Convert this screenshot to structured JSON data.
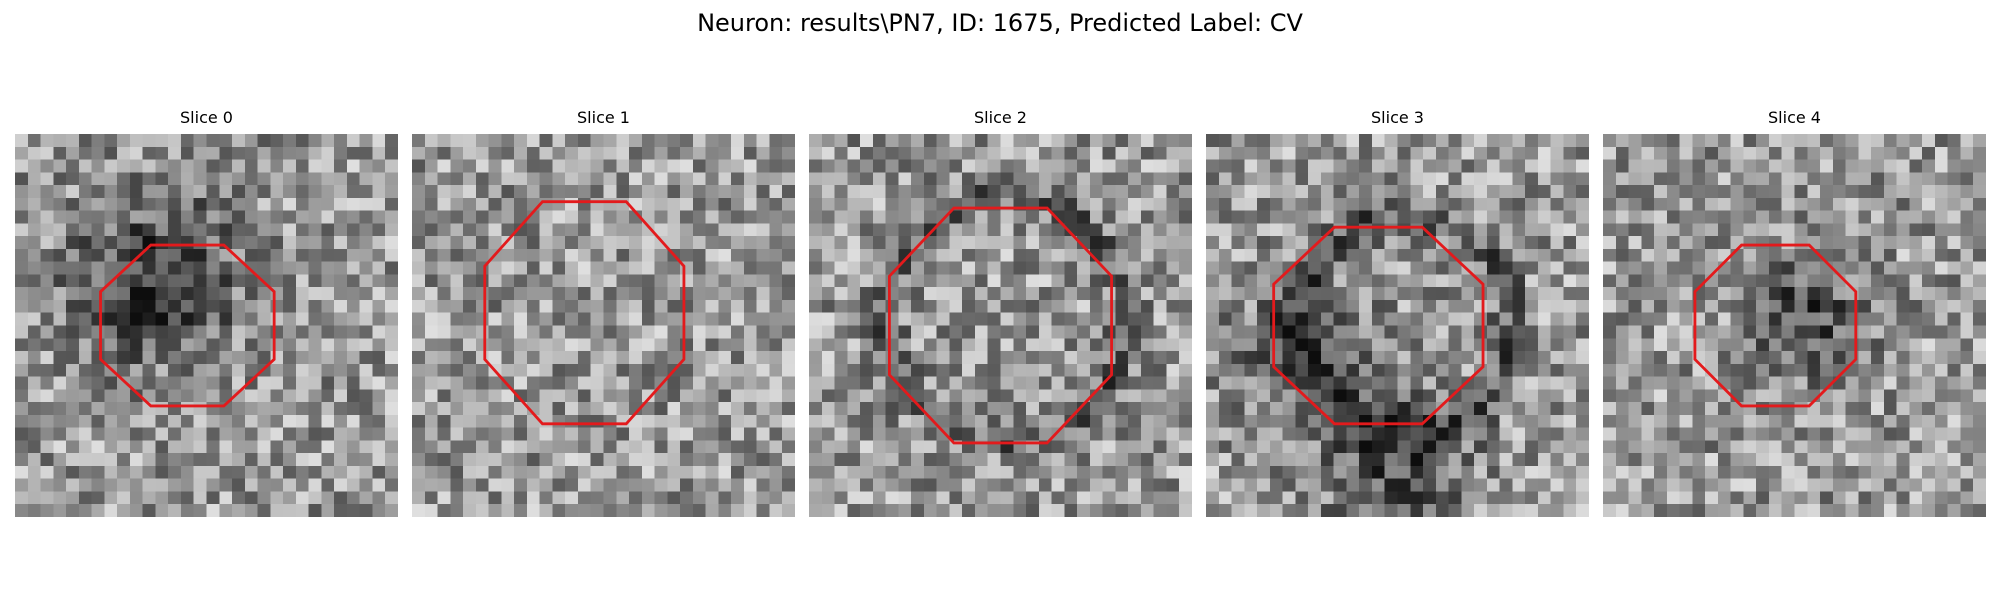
{
  "figure": {
    "title": "Neuron: results\\PN7, ID: 1675, Predicted Label: CV"
  },
  "outline_color": "#e31a1c",
  "panels": [
    {
      "title": "Slice 0",
      "image": "grayscale-microscopy-slice"
    },
    {
      "title": "Slice 1",
      "image": "grayscale-microscopy-slice"
    },
    {
      "title": "Slice 2",
      "image": "grayscale-microscopy-slice"
    },
    {
      "title": "Slice 3",
      "image": "grayscale-microscopy-slice"
    },
    {
      "title": "Slice 4",
      "image": "grayscale-microscopy-slice"
    }
  ]
}
